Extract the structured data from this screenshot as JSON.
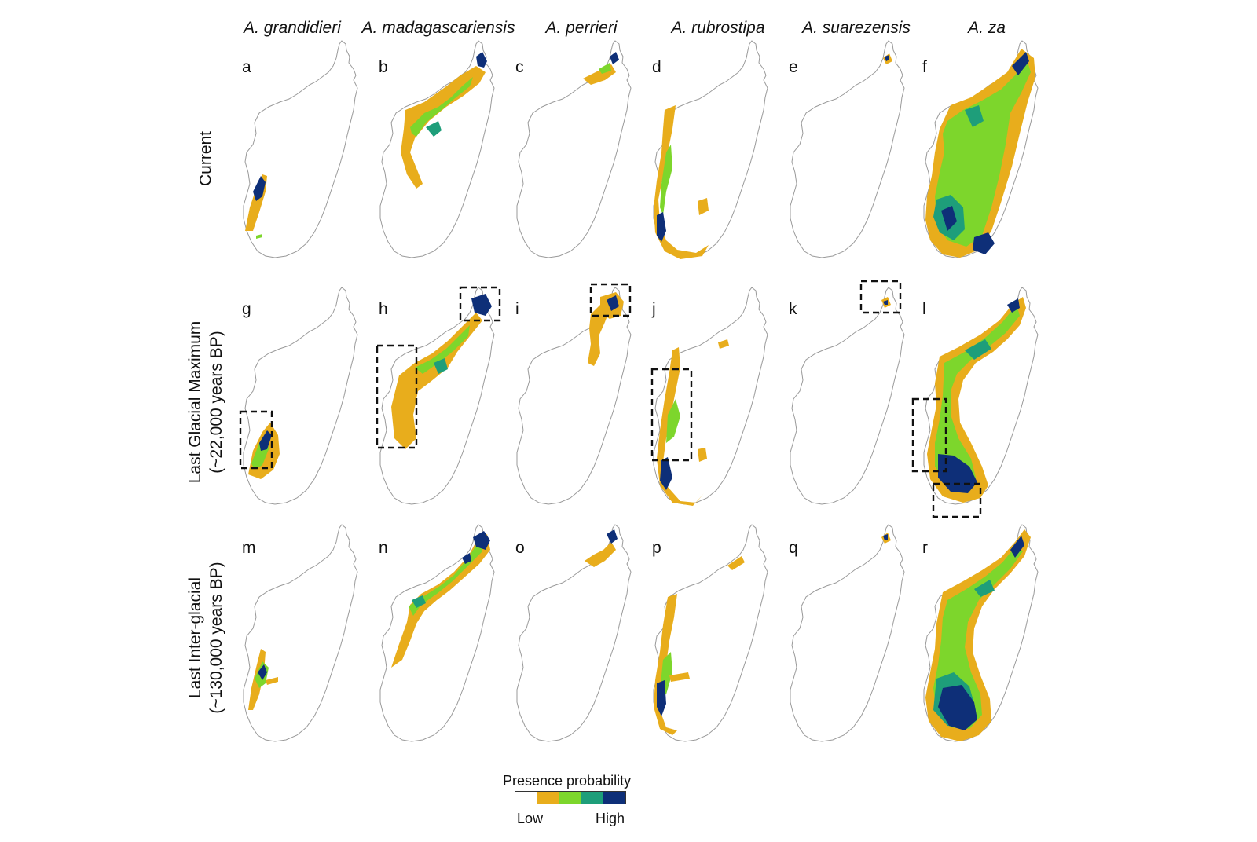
{
  "species": [
    "A. grandidieri",
    "A. madagascariensis",
    "A. perrieri",
    "A. rubrostipa",
    "A. suarezensis",
    "A. za"
  ],
  "periods": [
    {
      "label_lines": [
        "Current"
      ]
    },
    {
      "label_lines": [
        "Last Glacial Maximum",
        "(~22,000 years BP)"
      ]
    },
    {
      "label_lines": [
        "Last Inter-glacial",
        "(~130,000 years BP)"
      ]
    }
  ],
  "panel_letters": [
    "a",
    "b",
    "c",
    "d",
    "e",
    "f",
    "g",
    "h",
    "i",
    "j",
    "k",
    "l",
    "m",
    "n",
    "o",
    "p",
    "q",
    "r"
  ],
  "legend": {
    "title": "Presence probability",
    "low": "Low",
    "high": "High",
    "colors": [
      "#ffffff",
      "#e8ad1c",
      "#7dd62c",
      "#1e9e7a",
      "#0e2f78"
    ]
  },
  "map_colors": {
    "outline": "#9a9a9a",
    "low_mid": "#e8ad1c",
    "mid": "#7dd62c",
    "mid_high": "#1e9e7a",
    "high": "#0e2f78",
    "highlight_box": "#111111"
  }
}
